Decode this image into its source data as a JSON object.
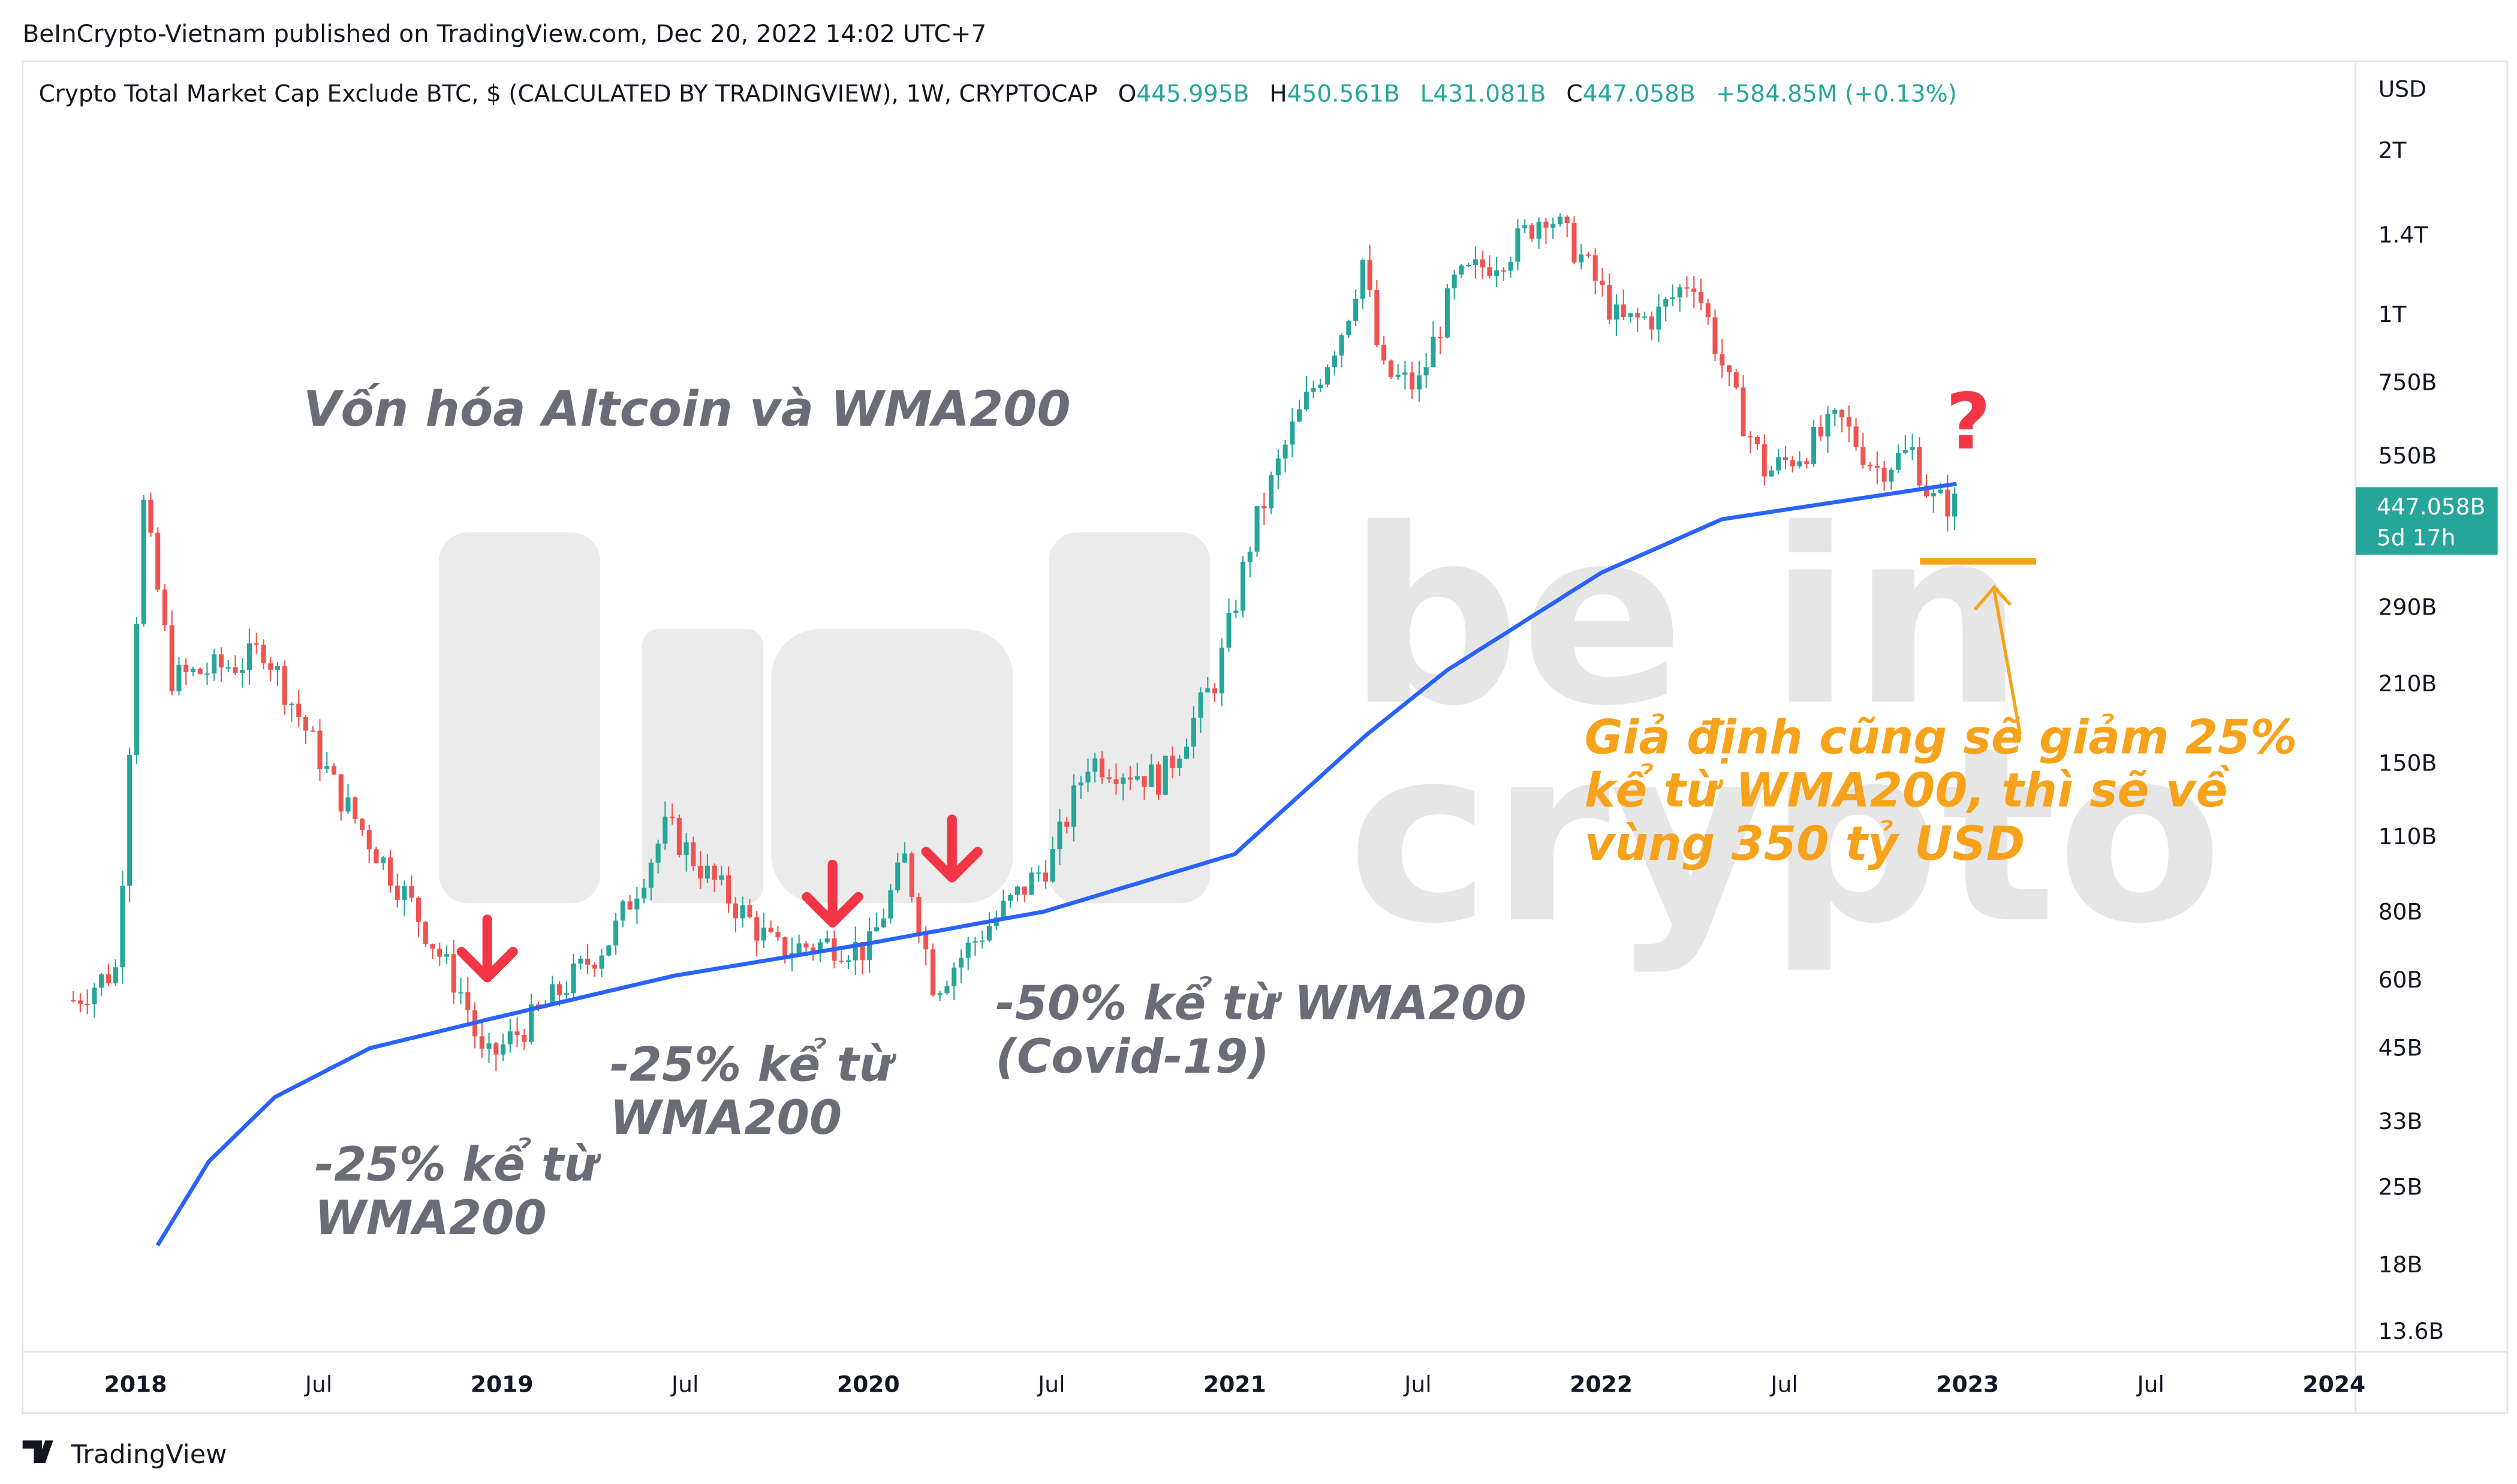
{
  "header": {
    "published": "BeInCrypto-Vietnam published on TradingView.com, Dec 20, 2022 14:02 UTC+7",
    "symbol": "Crypto Total Market Cap Exclude BTC, $ (CALCULATED BY TRADINGVIEW), 1W, CRYPTOCAP",
    "o_label": "O",
    "o": "445.995B",
    "h_label": "H",
    "h": "450.561B",
    "l": "L431.081B",
    "c_label": "C",
    "c": "447.058B",
    "change": "+584.85M (+0.13%)"
  },
  "footer": {
    "brand": "TradingView"
  },
  "colors": {
    "up": "#26a69a",
    "down": "#ef5350",
    "wma": "#2962ff",
    "accent": "#f7a21b",
    "arrow": "#f23645",
    "annotation": "#6a6d78"
  },
  "price_tag": {
    "value": "447.058B",
    "countdown": "5d 17h"
  },
  "annotations": {
    "title": "Vốn hóa Altcoin và WMA200",
    "a1": [
      "-25% kể từ",
      "WMA200"
    ],
    "a2": [
      "-25% kể từ",
      "WMA200"
    ],
    "a3": [
      "-50% kể từ WMA200",
      "(Covid-19)"
    ],
    "a4": [
      "Giả định cũng sẽ giảm 25%",
      "kể từ WMA200, thì sẽ về",
      "vùng 350 tỷ USD"
    ],
    "question": "?"
  },
  "watermark": {
    "line1": "be in",
    "line2": "crypto"
  },
  "chart_data": {
    "type": "candlestick",
    "title": "Crypto Total Market Cap Exclude BTC, 1W",
    "yscale": "log",
    "ylabel": "USD",
    "ylim": [
      13.6,
      2000
    ],
    "y_ticks": [
      "2T",
      "1.4T",
      "1T",
      "750B",
      "550B",
      "290B",
      "210B",
      "150B",
      "110B",
      "80B",
      "60B",
      "45B",
      "33B",
      "25B",
      "18B",
      "13.6B"
    ],
    "y_tick_values": [
      2000,
      1400,
      1000,
      750,
      550,
      290,
      210,
      150,
      110,
      80,
      60,
      45,
      33,
      25,
      18,
      13.6
    ],
    "x_ticks": [
      "2018",
      "Jul",
      "2019",
      "Jul",
      "2020",
      "Jul",
      "2021",
      "Jul",
      "2022",
      "Jul",
      "2023",
      "Jul",
      "2024"
    ],
    "x_tick_values": [
      2018,
      2018.5,
      2019,
      2019.5,
      2020,
      2020.5,
      2021,
      2021.5,
      2022,
      2022.5,
      2023,
      2023.5,
      2024
    ],
    "xlim": [
      2017.69,
      2024.06
    ],
    "price_path_billions": [
      [
        2017.83,
        55
      ],
      [
        2017.95,
        63
      ],
      [
        2018.02,
        455
      ],
      [
        2018.1,
        214
      ],
      [
        2018.3,
        230
      ],
      [
        2018.35,
        245
      ],
      [
        2018.55,
        133
      ],
      [
        2018.75,
        83
      ],
      [
        2018.9,
        55
      ],
      [
        2018.95,
        42
      ],
      [
        2019.1,
        52
      ],
      [
        2019.3,
        72
      ],
      [
        2019.45,
        115
      ],
      [
        2019.55,
        95
      ],
      [
        2019.75,
        68
      ],
      [
        2019.9,
        70
      ],
      [
        2020.0,
        68
      ],
      [
        2020.1,
        100
      ],
      [
        2020.18,
        58
      ],
      [
        2020.3,
        72
      ],
      [
        2020.5,
        100
      ],
      [
        2020.6,
        152
      ],
      [
        2020.8,
        140
      ],
      [
        2020.95,
        215
      ],
      [
        2021.05,
        400
      ],
      [
        2021.15,
        600
      ],
      [
        2021.3,
        960
      ],
      [
        2021.35,
        1260
      ],
      [
        2021.4,
        780
      ],
      [
        2021.5,
        735
      ],
      [
        2021.6,
        1140
      ],
      [
        2021.75,
        1310
      ],
      [
        2021.85,
        1550
      ],
      [
        2021.95,
        1260
      ],
      [
        2022.05,
        960
      ],
      [
        2022.15,
        990
      ],
      [
        2022.25,
        1180
      ],
      [
        2022.35,
        735
      ],
      [
        2022.45,
        510
      ],
      [
        2022.55,
        560
      ],
      [
        2022.65,
        640
      ],
      [
        2022.75,
        520
      ],
      [
        2022.85,
        560
      ],
      [
        2022.9,
        455
      ],
      [
        2022.97,
        447
      ]
    ],
    "wma200_billions": [
      [
        2018.06,
        19.5
      ],
      [
        2018.2,
        27.8
      ],
      [
        2018.38,
        36.5
      ],
      [
        2018.64,
        44.9
      ],
      [
        2019.0,
        51.4
      ],
      [
        2019.47,
        61
      ],
      [
        2020.0,
        69.9
      ],
      [
        2020.48,
        80
      ],
      [
        2021.0,
        102
      ],
      [
        2021.36,
        169
      ],
      [
        2021.58,
        222
      ],
      [
        2022.0,
        335
      ],
      [
        2022.33,
        420
      ],
      [
        2022.97,
        488
      ]
    ],
    "target_level_billions": 350
  }
}
